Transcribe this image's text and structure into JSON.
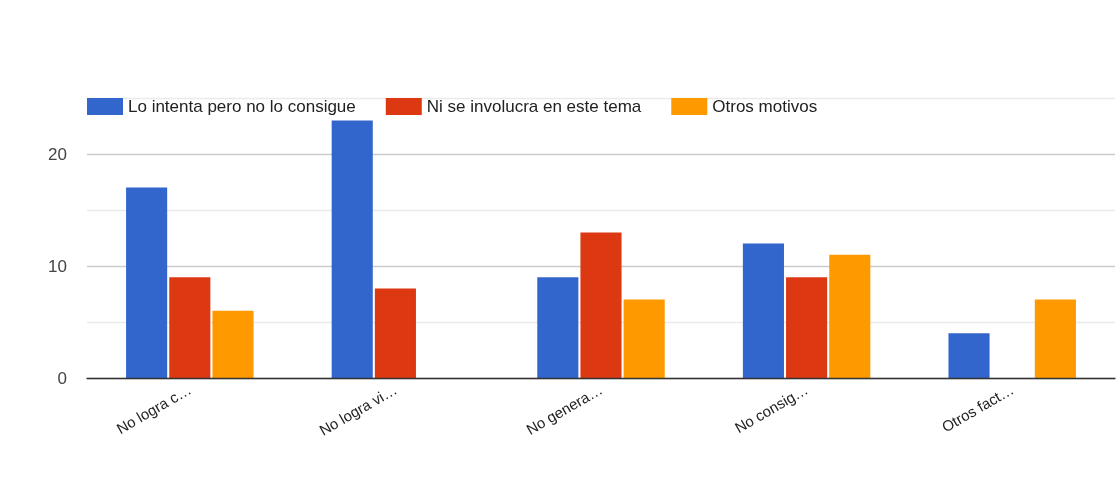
{
  "chart_data": {
    "type": "bar",
    "categories": [
      "No logra c…",
      "No logra vi…",
      "No genera…",
      "No consig…",
      "Otros fact…"
    ],
    "series": [
      {
        "name": "Lo intenta pero no lo consigue",
        "color": "#3366cc",
        "values": [
          17,
          23,
          9,
          12,
          4
        ]
      },
      {
        "name": "Ni se involucra en este tema",
        "color": "#dc3912",
        "values": [
          9,
          8,
          13,
          9,
          0
        ]
      },
      {
        "name": "Otros motivos",
        "color": "#ff9900",
        "values": [
          6,
          0,
          7,
          11,
          7
        ]
      }
    ],
    "ylim": [
      0,
      25
    ],
    "yticks": [
      0,
      {
        "value": 5,
        "label": null
      },
      10,
      {
        "value": 15,
        "label": null
      },
      20,
      {
        "value": 25,
        "label": null
      }
    ],
    "grid": "y",
    "legend": "top left"
  }
}
